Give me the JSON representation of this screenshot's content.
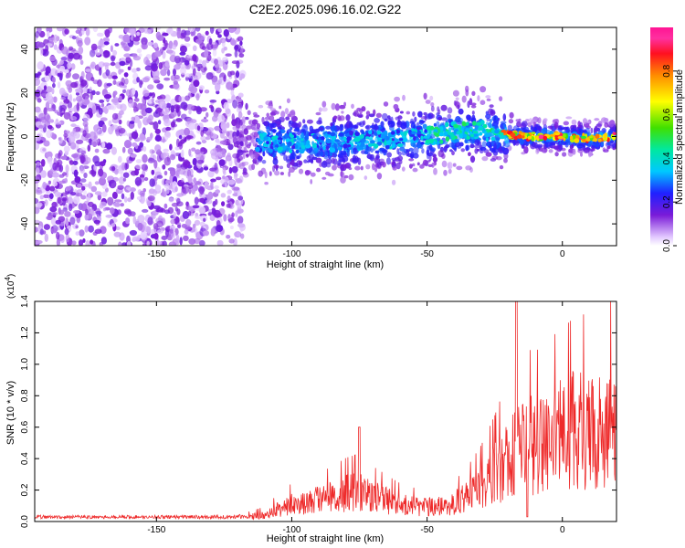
{
  "title": "C2E2.2025.096.16.02.G22",
  "chart_data": [
    {
      "type": "heatmap",
      "xlabel": "Height of straight line (km)",
      "ylabel": "Frequency (Hz)",
      "xlim": [
        -195,
        20
      ],
      "ylim": [
        -50,
        50
      ],
      "xticks": [
        -150,
        -100,
        -50,
        0
      ],
      "yticks": [
        -40,
        -20,
        0,
        20,
        40
      ],
      "colorbar": {
        "label": "Normalized spectral amplitude",
        "range": [
          0,
          1
        ],
        "ticks": [
          "0.0",
          "0.2",
          "0.4",
          "0.6",
          "0.8"
        ],
        "colors": [
          "#ffffff",
          "#e2c8ff",
          "#7a1bd8",
          "#2020ff",
          "#00c8ff",
          "#00e8a0",
          "#40e000",
          "#ffff00",
          "#ff8c00",
          "#ff1020",
          "#ff30a0",
          "#ff1493"
        ]
      },
      "regions": [
        {
          "name": "noise",
          "x": [
            -195,
            -118
          ],
          "freq": [
            -50,
            50
          ],
          "amplitude": [
            0.02,
            0.15
          ]
        },
        {
          "name": "signal",
          "x": [
            -118,
            20
          ],
          "note": "narrow band around the trend line"
        }
      ],
      "signal_trend": {
        "x": [
          -118,
          -100,
          -80,
          -60,
          -40,
          -30,
          -20,
          -10,
          0,
          10,
          20
        ],
        "freq": [
          -2,
          -3,
          -2,
          -1,
          2,
          3,
          1,
          0,
          0,
          -1,
          0
        ]
      }
    },
    {
      "type": "line",
      "xlabel": "Height of straight line (km)",
      "ylabel": "SNR (10 * v/v)",
      "y_multiplier": "(x10^4)",
      "xlim": [
        -195,
        20
      ],
      "ylim": [
        0,
        14000
      ],
      "xticks": [
        -150,
        -100,
        -50,
        0
      ],
      "yticks": [
        0,
        2000,
        4000,
        6000,
        8000,
        10000,
        12000,
        14000
      ],
      "ytick_labels": [
        "0.0",
        "0.2",
        "0.4",
        "0.6",
        "0.8",
        "1.0",
        "1.2",
        "1.4"
      ],
      "color": "#ee2a2a",
      "envelope": {
        "x": [
          -195,
          -150,
          -120,
          -110,
          -105,
          -100,
          -95,
          -90,
          -85,
          -80,
          -75,
          -70,
          -65,
          -60,
          -55,
          -50,
          -45,
          -40,
          -35,
          -30,
          -25,
          -20,
          -17,
          -15,
          -10,
          -5,
          0,
          5,
          10,
          15,
          20
        ],
        "y": [
          200,
          250,
          300,
          700,
          1300,
          1800,
          2100,
          2300,
          2600,
          3000,
          3200,
          2600,
          2200,
          1800,
          1600,
          1500,
          1600,
          1900,
          2600,
          3600,
          5000,
          6800,
          8000,
          8200,
          8000,
          8600,
          9100,
          9700,
          9800,
          10300,
          10600
        ]
      }
    }
  ]
}
